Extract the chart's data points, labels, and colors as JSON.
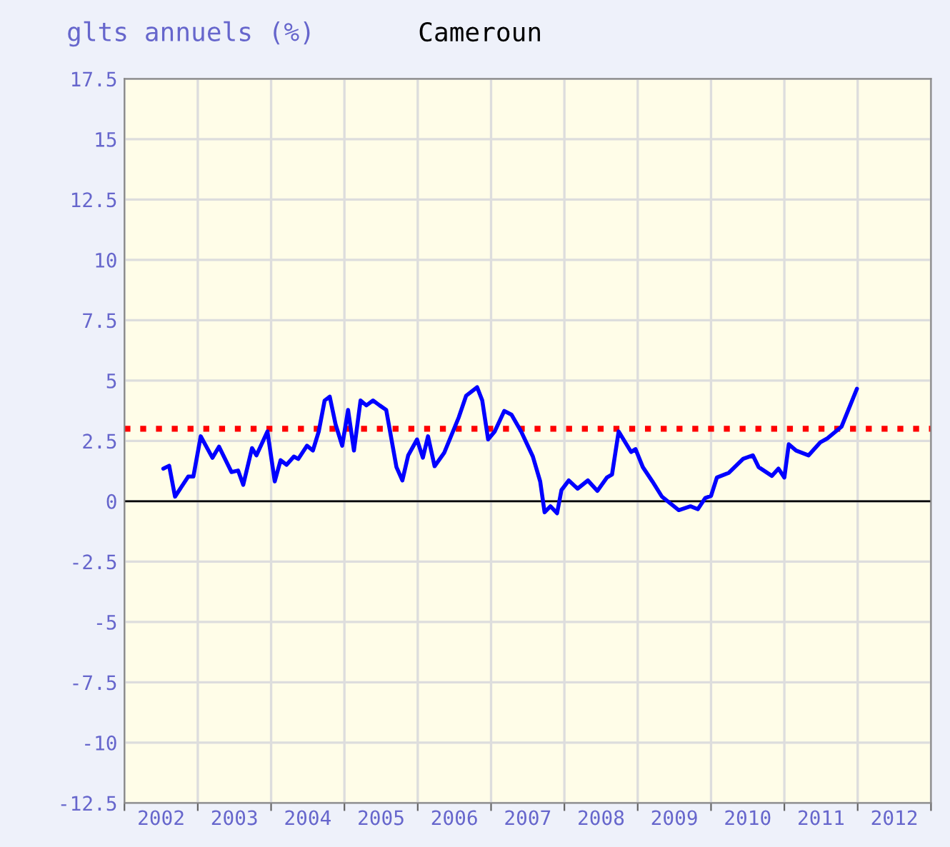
{
  "chart_data": {
    "type": "line",
    "title": "Cameroun",
    "ylabel": "glts annuels (%)",
    "xlim": [
      2002,
      2013
    ],
    "xticks": [
      {
        "value": 2002,
        "label": null
      },
      {
        "value": 2003,
        "label": null
      },
      {
        "value": 2004,
        "label": null
      },
      {
        "value": 2005,
        "label": null
      },
      {
        "value": 2006,
        "label": null
      },
      {
        "value": 2007,
        "label": null
      },
      {
        "value": 2008,
        "label": null
      },
      {
        "value": 2009,
        "label": null
      },
      {
        "value": 2010,
        "label": null
      },
      {
        "value": 2011,
        "label": null
      },
      {
        "value": 2012,
        "label": null
      },
      {
        "value": 2013,
        "label": null
      },
      {
        "value": 2002.5,
        "label": "2002"
      },
      {
        "value": 2003.5,
        "label": "2003"
      },
      {
        "value": 2004.5,
        "label": "2004"
      },
      {
        "value": 2005.5,
        "label": "2005"
      },
      {
        "value": 2006.5,
        "label": "2006"
      },
      {
        "value": 2007.5,
        "label": "2007"
      },
      {
        "value": 2008.5,
        "label": "2008"
      },
      {
        "value": 2009.5,
        "label": "2009"
      },
      {
        "value": 2010.5,
        "label": "2010"
      },
      {
        "value": 2011.5,
        "label": "2011"
      },
      {
        "value": 2012.5,
        "label": "2012"
      }
    ],
    "ylim": [
      -12.5,
      17.5
    ],
    "yticks": [
      -12.5,
      -10,
      -7.5,
      -5,
      -2.5,
      0,
      2.5,
      5,
      7.5,
      10,
      12.5,
      15,
      17.5
    ],
    "grid": true,
    "marker": "none",
    "line_style": "solid",
    "ref_lines": [
      {
        "axis": "y",
        "value": 3.0,
        "label": null,
        "color": "#ff0000",
        "line_style": "dotted"
      },
      {
        "axis": "y",
        "value": 0,
        "label": null,
        "color": "#000000",
        "line_style": "solid"
      }
    ],
    "series": [
      {
        "color": "#0000ff",
        "x": [
          2002.53,
          2002.61,
          2002.69,
          2002.87,
          2002.94,
          2003.04,
          2003.2,
          2003.29,
          2003.46,
          2003.55,
          2003.62,
          2003.74,
          2003.8,
          2003.95,
          2004.05,
          2004.13,
          2004.21,
          2004.31,
          2004.37,
          2004.49,
          2004.57,
          2004.65,
          2004.73,
          2004.8,
          2004.88,
          2004.97,
          2005.05,
          2005.13,
          2005.22,
          2005.3,
          2005.39,
          2005.48,
          2005.57,
          2005.71,
          2005.79,
          2005.87,
          2005.99,
          2006.07,
          2006.14,
          2006.23,
          2006.36,
          2006.56,
          2006.66,
          2006.81,
          2006.88,
          2006.96,
          2007.05,
          2007.18,
          2007.28,
          2007.41,
          2007.57,
          2007.67,
          2007.73,
          2007.81,
          2007.9,
          2007.96,
          2008.06,
          2008.18,
          2008.32,
          2008.45,
          2008.58,
          2008.65,
          2008.74,
          2008.91,
          2008.97,
          2009.07,
          2009.2,
          2009.33,
          2009.56,
          2009.72,
          2009.82,
          2009.92,
          2010.0,
          2010.08,
          2010.24,
          2010.44,
          2010.57,
          2010.65,
          2010.83,
          2010.92,
          2011.0,
          2011.06,
          2011.16,
          2011.33,
          2011.49,
          2011.58,
          2011.78,
          2011.99
        ],
        "values": [
          1.35,
          1.47,
          0.19,
          1.02,
          1.02,
          2.69,
          1.8,
          2.26,
          1.21,
          1.27,
          0.68,
          2.2,
          1.9,
          2.89,
          0.82,
          1.7,
          1.51,
          1.85,
          1.75,
          2.3,
          2.1,
          2.89,
          4.17,
          4.33,
          3.18,
          2.3,
          3.78,
          2.1,
          4.17,
          3.97,
          4.17,
          3.97,
          3.78,
          1.41,
          0.86,
          1.9,
          2.56,
          1.8,
          2.69,
          1.45,
          2.0,
          3.48,
          4.37,
          4.72,
          4.17,
          2.56,
          2.89,
          3.74,
          3.58,
          2.89,
          1.85,
          0.82,
          -0.46,
          -0.21,
          -0.5,
          0.46,
          0.86,
          0.52,
          0.86,
          0.43,
          0.98,
          1.11,
          2.89,
          2.04,
          2.16,
          1.41,
          0.82,
          0.19,
          -0.37,
          -0.21,
          -0.33,
          0.13,
          0.22,
          0.98,
          1.17,
          1.76,
          1.9,
          1.41,
          1.05,
          1.35,
          0.98,
          2.36,
          2.1,
          1.9,
          2.44,
          2.59,
          3.09,
          4.66
        ]
      }
    ]
  }
}
